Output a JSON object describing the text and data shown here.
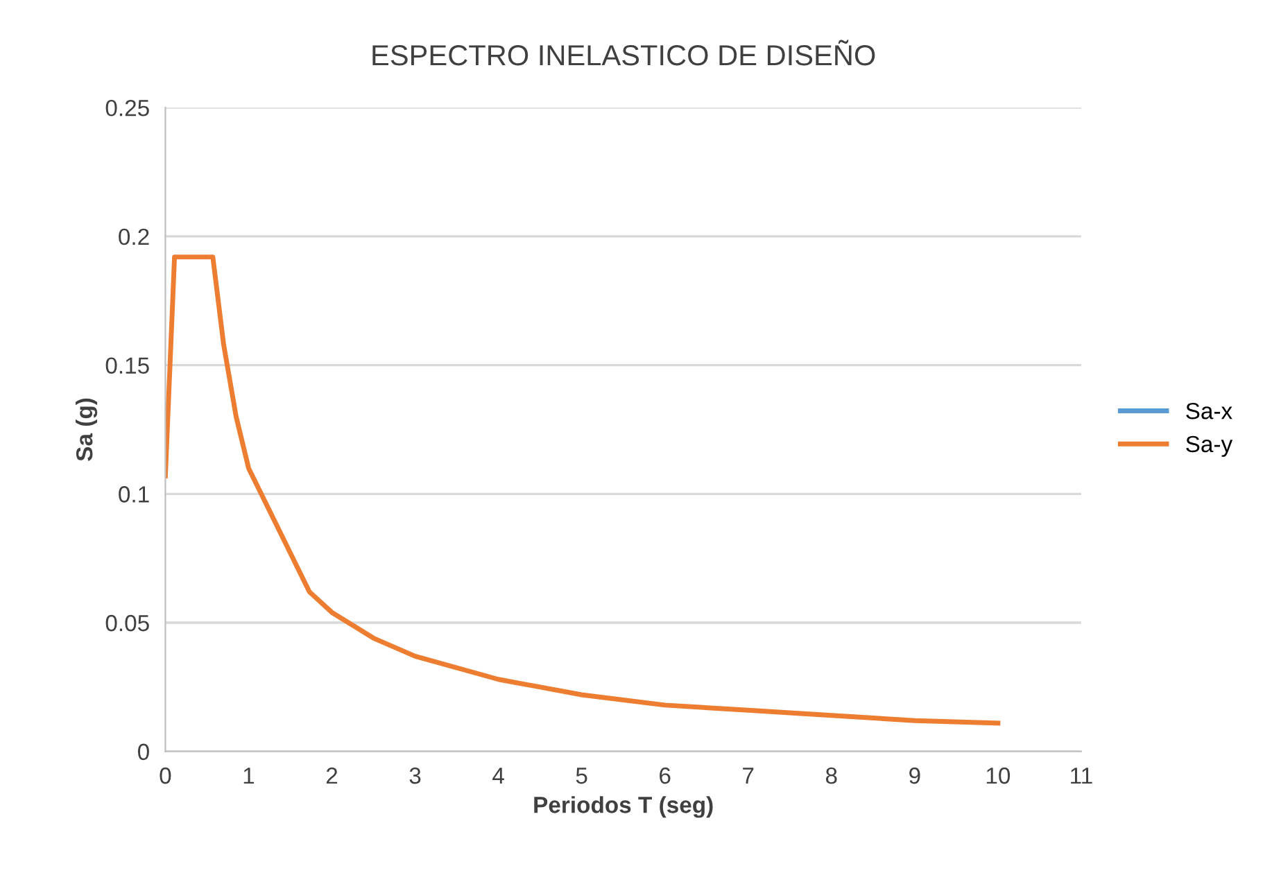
{
  "chart_data": {
    "type": "line",
    "title": "ESPECTRO INELASTICO DE DISEÑO",
    "xlabel": "Periodos T (seg)",
    "ylabel": "Sa (g)",
    "x": [
      0,
      0.11,
      0.57,
      0.7,
      0.85,
      1.0,
      1.73,
      2,
      2.5,
      3,
      4,
      5,
      6,
      7,
      8,
      9,
      10
    ],
    "series": [
      {
        "name": "Sa-x",
        "color": "#5b9bd5",
        "values": [
          null,
          null,
          null,
          null,
          null,
          null,
          null,
          null,
          null,
          null,
          null,
          null,
          null,
          null,
          null,
          null,
          null
        ]
      },
      {
        "name": "Sa-y",
        "color": "#ed7d31",
        "values": [
          0.107,
          0.192,
          0.192,
          0.158,
          0.13,
          0.11,
          0.062,
          0.054,
          0.044,
          0.037,
          0.028,
          0.022,
          0.018,
          0.016,
          0.014,
          0.012,
          0.011
        ]
      }
    ],
    "xlim": [
      0,
      11
    ],
    "xticks": [
      0,
      1,
      2,
      3,
      4,
      5,
      6,
      7,
      8,
      9,
      10,
      11
    ],
    "ylim": [
      0,
      0.25
    ],
    "yticks": [
      0,
      0.05,
      0.1,
      0.15,
      0.2,
      0.25
    ],
    "grid": "y",
    "legend": "right",
    "marker": "none",
    "line_style": "solid"
  }
}
